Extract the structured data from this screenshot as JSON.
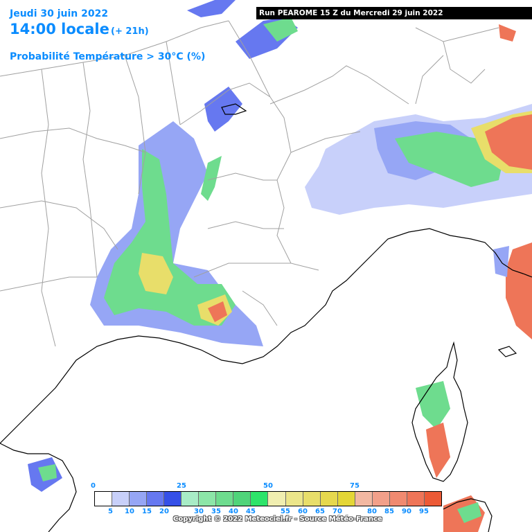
{
  "header": {
    "date": "Jeudi 30 juin 2022",
    "time": "14:00 locale",
    "lead": "(+ 21h)",
    "parameter": "Probabilité Température > 30°C (%)",
    "run": "Run PEAROME 15 Z du Mercredi 29 juin 2022"
  },
  "colors": {
    "title": "#0a8cff",
    "border": "#a0a0a0",
    "coast": "#000000",
    "land": "#ffffff",
    "sea": "#ffffff"
  },
  "legend": {
    "major_ticks": [
      "0",
      "25",
      "50",
      "75"
    ],
    "minor_ticks": [
      "5",
      "10",
      "15",
      "20",
      "30",
      "35",
      "40",
      "45",
      "55",
      "60",
      "65",
      "70",
      "80",
      "85",
      "90",
      "95"
    ],
    "swatches": [
      "#ffffff",
      "#c8d0fa",
      "#96a6f5",
      "#6678f0",
      "#3550e8",
      "#a8ecc6",
      "#8ce6a8",
      "#6edc8e",
      "#50d47a",
      "#2ee46a",
      "#f0eeb0",
      "#ece68a",
      "#e8de6a",
      "#e6d84e",
      "#e4d636",
      "#f2b8a2",
      "#f2a08a",
      "#f08a70",
      "#ee7558",
      "#ec5a36"
    ]
  },
  "copyright": "Copyright © 2022 Meteociel.fr - Source Météo-France",
  "map": {
    "icons": [
      "probability-field",
      "country-borders",
      "coastline"
    ]
  }
}
